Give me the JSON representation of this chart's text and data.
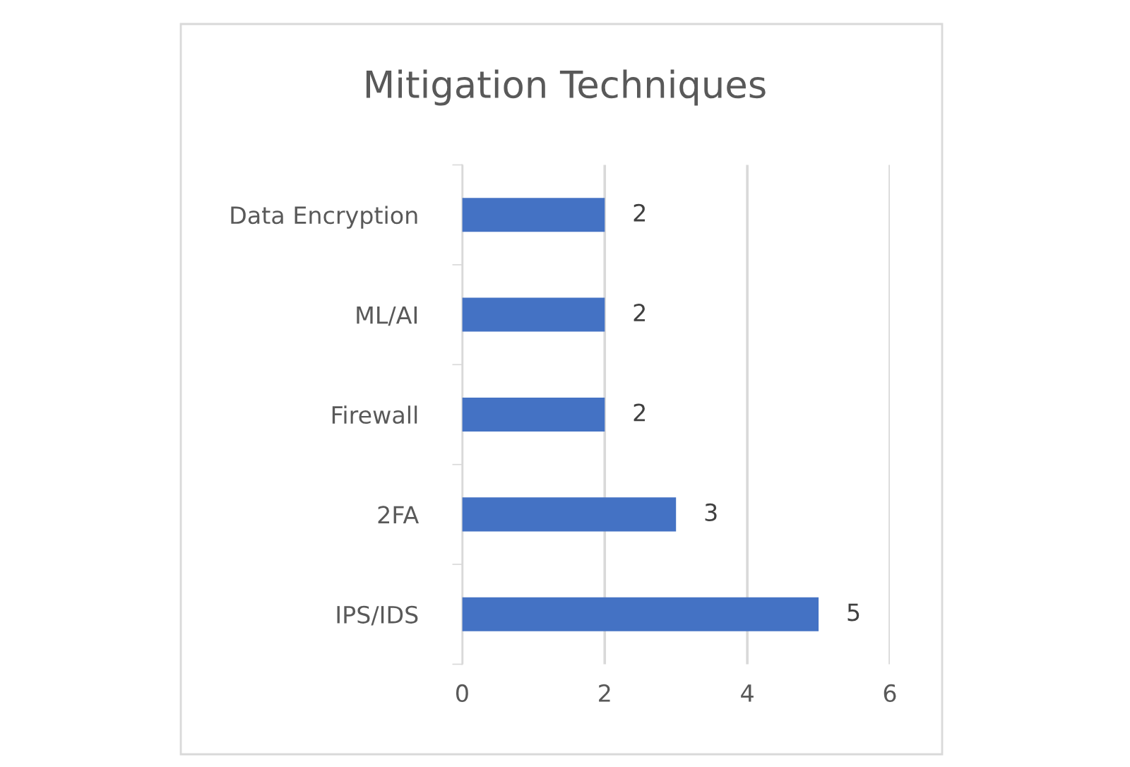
{
  "chart_data": {
    "type": "bar",
    "orientation": "horizontal",
    "title": "Mitigation Techniques",
    "categories": [
      "Data Encryption",
      "ML/AI",
      "Firewall",
      "2FA",
      "IPS/IDS"
    ],
    "values": [
      2,
      2,
      2,
      3,
      5
    ],
    "color": "#4472c4",
    "xlim": [
      0,
      6
    ],
    "xticks": [
      0,
      2,
      4,
      6
    ],
    "grid": "x",
    "data_labels": true,
    "legend": false
  }
}
